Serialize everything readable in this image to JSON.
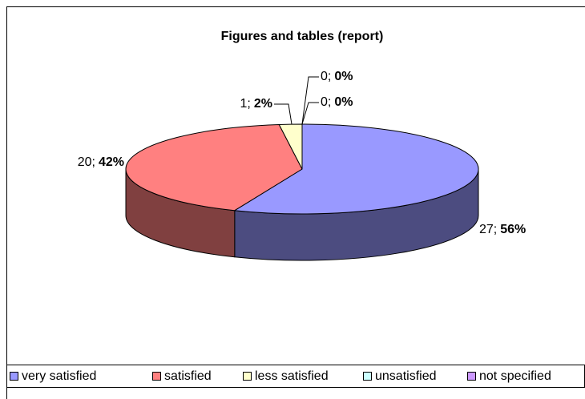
{
  "chart_data": {
    "type": "pie3d",
    "title": "Figures and tables (report)",
    "categories": [
      "very satisfied",
      "satisfied",
      "less satisfied",
      "unsatisfied",
      "not specified"
    ],
    "values": [
      27,
      20,
      1,
      0,
      0
    ],
    "value_labels": [
      "27;",
      "20;",
      "1;",
      "0;",
      "0;"
    ],
    "percent_labels": [
      "56%",
      "42%",
      "2%",
      "0%",
      "0%"
    ],
    "colors": [
      "#9999ff",
      "#ff8080",
      "#ffffcc",
      "#ccffff",
      "#cc99ff"
    ],
    "side_colors": [
      "#4c4c80",
      "#804040",
      "#808066",
      "#668080",
      "#664c80"
    ],
    "legend": "bottom"
  }
}
